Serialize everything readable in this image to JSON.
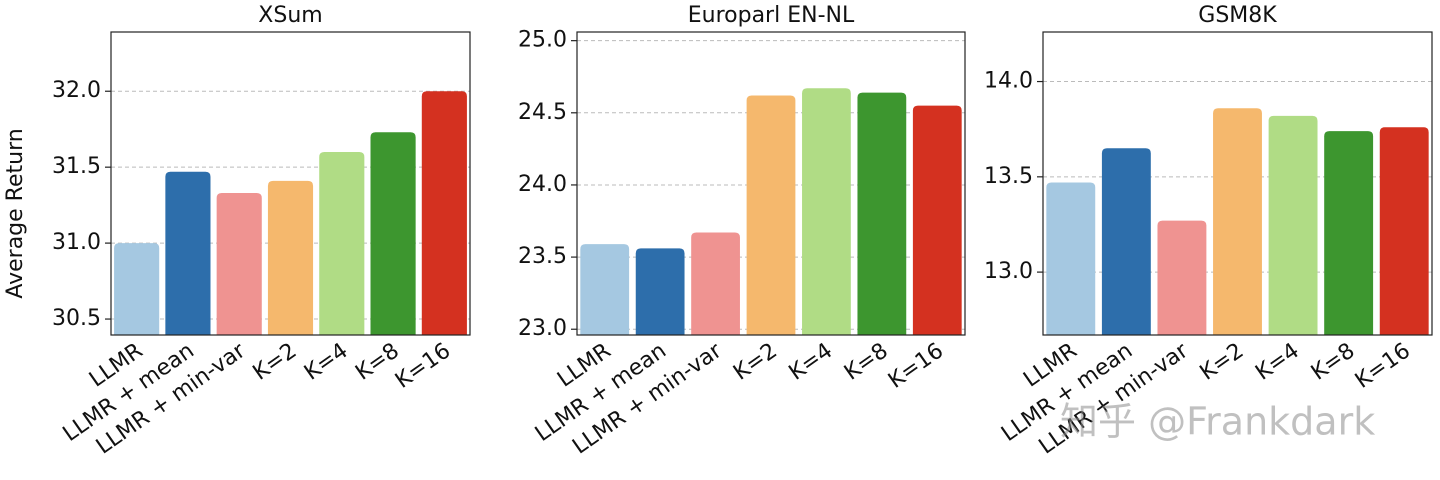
{
  "chart_data": [
    {
      "type": "bar",
      "title": "XSum",
      "ylabel": "Average Return",
      "categories": [
        "LLMR",
        "LLMR + mean",
        "LLMR + min-var",
        "K=2",
        "K=4",
        "K=8",
        "K=16"
      ],
      "values": [
        31.0,
        31.47,
        31.33,
        31.41,
        31.6,
        31.73,
        32.0
      ],
      "colors": [
        "#a5c8e1",
        "#2d6eab",
        "#ef9391",
        "#f5b86d",
        "#b0dc85",
        "#3d962f",
        "#d43120"
      ],
      "ylim": [
        30.395,
        32.39
      ],
      "yticks": [
        30.5,
        {
          "value": 31,
          "label": "31.0"
        },
        31.5,
        {
          "value": 32,
          "label": "32.0"
        }
      ],
      "grid": true
    },
    {
      "type": "bar",
      "title": "Europarl EN-NL",
      "categories": [
        "LLMR",
        "LLMR + mean",
        "LLMR + min-var",
        "K=2",
        "K=4",
        "K=8",
        "K=16"
      ],
      "values": [
        23.59,
        23.56,
        23.67,
        24.62,
        24.67,
        24.64,
        24.55
      ],
      "colors": [
        "#a5c8e1",
        "#2d6eab",
        "#ef9391",
        "#f5b86d",
        "#b0dc85",
        "#3d962f",
        "#d43120"
      ],
      "ylim": [
        22.96,
        25.06
      ],
      "yticks": [
        {
          "value": 23,
          "label": "23.0"
        },
        23.5,
        {
          "value": 24,
          "label": "24.0"
        },
        24.5,
        {
          "value": 25,
          "label": "25.0"
        }
      ],
      "grid": true
    },
    {
      "type": "bar",
      "title": "GSM8K",
      "categories": [
        "LLMR",
        "LLMR + mean",
        "LLMR + min-var",
        "K=2",
        "K=4",
        "K=8",
        "K=16"
      ],
      "values": [
        13.47,
        13.65,
        13.27,
        13.86,
        13.82,
        13.74,
        13.76
      ],
      "colors": [
        "#a5c8e1",
        "#2d6eab",
        "#ef9391",
        "#f5b86d",
        "#b0dc85",
        "#3d962f",
        "#d43120"
      ],
      "ylim": [
        12.67,
        14.26
      ],
      "yticks": [
        {
          "value": 13,
          "label": "13.0"
        },
        13.5,
        {
          "value": 14,
          "label": "14.0"
        }
      ],
      "grid": true
    }
  ],
  "watermark": "知乎 @Frankdark"
}
